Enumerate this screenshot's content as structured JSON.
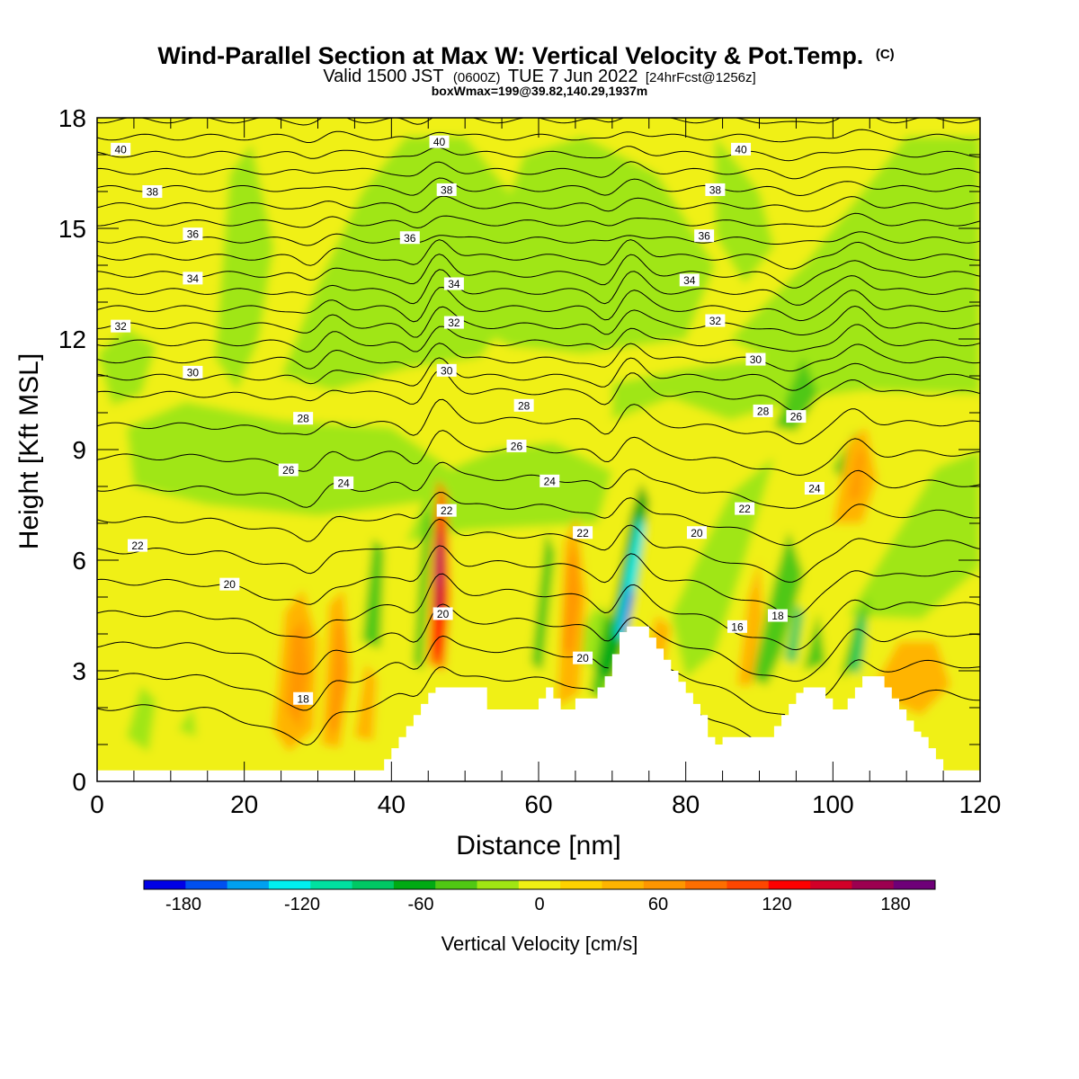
{
  "header": {
    "title_main": "Wind-Parallel Section at Max W: Vertical Velocity & Pot.Temp.",
    "title_mark": "(C)",
    "sub_a": "Valid 1500 JST",
    "sub_b": "(0600Z)",
    "sub_c": "TUE 7 Jun 2022",
    "sub_d": "[24hrFcst@1256z]",
    "box_info": "boxWmax=199@39.82,140.29,1937m"
  },
  "chart_data": {
    "type": "heatmap",
    "xlabel": "Distance [nm]",
    "ylabel": "Height [Kft MSL]",
    "xlim": [
      0,
      120
    ],
    "ylim": [
      0,
      18
    ],
    "xticks": [
      "0",
      "20",
      "40",
      "60",
      "80",
      "100",
      "120"
    ],
    "yticks": [
      "0",
      "3",
      "6",
      "9",
      "12",
      "15",
      "18"
    ],
    "colorbar": {
      "title": "Vertical Velocity [cm/s]",
      "labels": [
        "-180",
        "-120",
        "-60",
        "0",
        "60",
        "120",
        "180"
      ],
      "label_values": [
        -180,
        -120,
        -60,
        0,
        60,
        120,
        180
      ],
      "range": [
        -200,
        200
      ],
      "colors": [
        "#0000e6",
        "#0050f0",
        "#00a0f0",
        "#00f0f0",
        "#00e0a0",
        "#00c864",
        "#00aa14",
        "#50c814",
        "#a0e614",
        "#f0f014",
        "#ffd200",
        "#ffb400",
        "#ff9600",
        "#ff6e00",
        "#ff4600",
        "#ff0000",
        "#d20028",
        "#9c0050",
        "#6e0078"
      ]
    },
    "terrain_kft": [
      [
        0,
        0.3
      ],
      [
        39,
        0.3
      ],
      [
        39,
        0.6
      ],
      [
        40,
        0.6
      ],
      [
        40,
        0.9
      ],
      [
        41,
        0.9
      ],
      [
        41,
        1.2
      ],
      [
        42,
        1.2
      ],
      [
        42,
        1.5
      ],
      [
        43,
        1.5
      ],
      [
        43,
        1.8
      ],
      [
        44,
        1.8
      ],
      [
        44,
        2.1
      ],
      [
        45,
        2.1
      ],
      [
        45,
        2.4
      ],
      [
        46,
        2.4
      ],
      [
        46,
        2.55
      ],
      [
        53,
        2.55
      ],
      [
        53,
        1.95
      ],
      [
        60,
        1.95
      ],
      [
        60,
        2.25
      ],
      [
        61,
        2.25
      ],
      [
        61,
        2.55
      ],
      [
        62,
        2.55
      ],
      [
        62,
        2.25
      ],
      [
        63,
        2.25
      ],
      [
        63,
        1.95
      ],
      [
        65,
        1.95
      ],
      [
        65,
        2.25
      ],
      [
        68,
        2.25
      ],
      [
        68,
        2.55
      ],
      [
        69,
        2.55
      ],
      [
        69,
        2.85
      ],
      [
        70,
        2.85
      ],
      [
        70,
        3.45
      ],
      [
        71,
        3.45
      ],
      [
        71,
        4.05
      ],
      [
        72,
        4.05
      ],
      [
        72,
        4.2
      ],
      [
        75,
        4.2
      ],
      [
        75,
        3.9
      ],
      [
        76,
        3.9
      ],
      [
        76,
        3.6
      ],
      [
        77,
        3.6
      ],
      [
        77,
        3.3
      ],
      [
        78,
        3.3
      ],
      [
        78,
        3.0
      ],
      [
        79,
        3.0
      ],
      [
        79,
        2.7
      ],
      [
        80,
        2.7
      ],
      [
        80,
        2.4
      ],
      [
        81,
        2.4
      ],
      [
        81,
        2.1
      ],
      [
        82,
        2.1
      ],
      [
        82,
        1.8
      ],
      [
        83,
        1.8
      ],
      [
        83,
        1.2
      ],
      [
        84,
        1.2
      ],
      [
        84,
        1.0
      ],
      [
        85,
        1.0
      ],
      [
        85,
        1.2
      ],
      [
        92,
        1.2
      ],
      [
        92,
        1.5
      ],
      [
        93,
        1.5
      ],
      [
        93,
        1.8
      ],
      [
        94,
        1.8
      ],
      [
        94,
        2.1
      ],
      [
        95,
        2.1
      ],
      [
        95,
        2.4
      ],
      [
        96,
        2.4
      ],
      [
        96,
        2.55
      ],
      [
        99,
        2.55
      ],
      [
        99,
        2.25
      ],
      [
        100,
        2.25
      ],
      [
        100,
        1.95
      ],
      [
        102,
        1.95
      ],
      [
        102,
        2.25
      ],
      [
        103,
        2.25
      ],
      [
        103,
        2.55
      ],
      [
        104,
        2.55
      ],
      [
        104,
        2.85
      ],
      [
        107,
        2.85
      ],
      [
        107,
        2.55
      ],
      [
        108,
        2.55
      ],
      [
        108,
        2.25
      ],
      [
        109,
        2.25
      ],
      [
        109,
        1.95
      ],
      [
        110,
        1.95
      ],
      [
        110,
        1.65
      ],
      [
        111,
        1.65
      ],
      [
        111,
        1.35
      ],
      [
        112,
        1.35
      ],
      [
        112,
        1.2
      ],
      [
        113,
        1.2
      ],
      [
        113,
        0.9
      ],
      [
        114,
        0.9
      ],
      [
        114,
        0.6
      ],
      [
        115,
        0.6
      ],
      [
        115,
        0.3
      ],
      [
        120,
        0.3
      ]
    ],
    "isentropes_degC": [
      16,
      17,
      18,
      19,
      20,
      21,
      22,
      23,
      24,
      25,
      26,
      27,
      28,
      29,
      30,
      31,
      32,
      33,
      34,
      35,
      36,
      37,
      38,
      39,
      40,
      41,
      42
    ],
    "isentrope_labels": [
      {
        "text": "40",
        "x": 3.2,
        "y": 17.15
      },
      {
        "text": "40",
        "x": 46.5,
        "y": 17.35
      },
      {
        "text": "40",
        "x": 87.5,
        "y": 17.15
      },
      {
        "text": "38",
        "x": 7.5,
        "y": 16.0
      },
      {
        "text": "38",
        "x": 47.5,
        "y": 16.05
      },
      {
        "text": "38",
        "x": 84,
        "y": 16.05
      },
      {
        "text": "36",
        "x": 13,
        "y": 14.85
      },
      {
        "text": "36",
        "x": 42.5,
        "y": 14.75
      },
      {
        "text": "36",
        "x": 82.5,
        "y": 14.8
      },
      {
        "text": "34",
        "x": 13,
        "y": 13.65
      },
      {
        "text": "34",
        "x": 48.5,
        "y": 13.5
      },
      {
        "text": "34",
        "x": 80.5,
        "y": 13.6
      },
      {
        "text": "32",
        "x": 3.2,
        "y": 12.35
      },
      {
        "text": "32",
        "x": 48.5,
        "y": 12.45
      },
      {
        "text": "32",
        "x": 84,
        "y": 12.5
      },
      {
        "text": "30",
        "x": 13,
        "y": 11.1
      },
      {
        "text": "30",
        "x": 47.5,
        "y": 11.15
      },
      {
        "text": "30",
        "x": 89.5,
        "y": 11.45
      },
      {
        "text": "28",
        "x": 28,
        "y": 9.85
      },
      {
        "text": "28",
        "x": 58,
        "y": 10.2
      },
      {
        "text": "28",
        "x": 90.5,
        "y": 10.05
      },
      {
        "text": "26",
        "x": 26,
        "y": 8.45
      },
      {
        "text": "26",
        "x": 57,
        "y": 9.1
      },
      {
        "text": "26",
        "x": 95,
        "y": 9.9
      },
      {
        "text": "24",
        "x": 33.5,
        "y": 8.1
      },
      {
        "text": "24",
        "x": 61.5,
        "y": 8.15
      },
      {
        "text": "24",
        "x": 97.5,
        "y": 7.95
      },
      {
        "text": "22",
        "x": 5.5,
        "y": 6.4
      },
      {
        "text": "22",
        "x": 47.5,
        "y": 7.35
      },
      {
        "text": "22",
        "x": 66,
        "y": 6.75
      },
      {
        "text": "22",
        "x": 88,
        "y": 7.4
      },
      {
        "text": "20",
        "x": 18,
        "y": 5.35
      },
      {
        "text": "20",
        "x": 47,
        "y": 4.55
      },
      {
        "text": "20",
        "x": 66,
        "y": 3.35
      },
      {
        "text": "20",
        "x": 81.5,
        "y": 6.75
      },
      {
        "text": "18",
        "x": 28,
        "y": 2.25
      },
      {
        "text": "18",
        "x": 92.5,
        "y": 4.5
      },
      {
        "text": "16",
        "x": 87,
        "y": 4.2
      }
    ]
  }
}
